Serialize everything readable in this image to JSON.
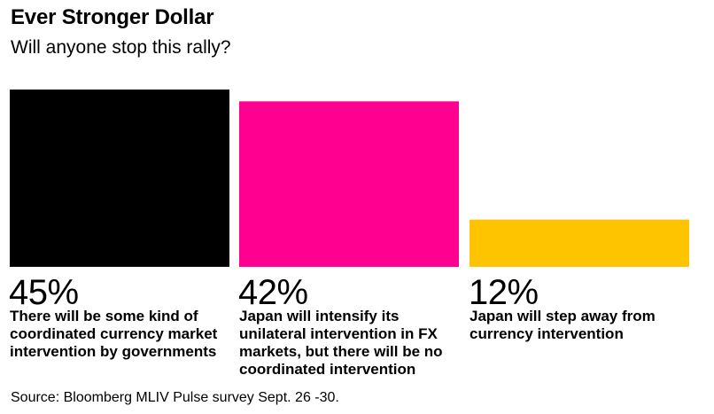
{
  "title": "Ever Stronger Dollar",
  "subtitle": "Will anyone stop this rally?",
  "source": "Source: Bloomberg MLIV Pulse survey Sept. 26 -30.",
  "chart_data": {
    "type": "bar",
    "title": "Ever Stronger Dollar",
    "subtitle": "Will anyone stop this rally?",
    "categories": [
      "There will be some kind of coordinated currency market intervention by governments",
      "Japan will intensify its unilateral intervention in FX markets, but there will be no coordinated intervention",
      "Japan will step away from currency intervention"
    ],
    "values": [
      45,
      42,
      12
    ],
    "value_labels": [
      "45%",
      "42%",
      "12%"
    ],
    "colors": [
      "#000000",
      "#ff0090",
      "#ffc400"
    ],
    "unit": "%",
    "ylim": [
      0,
      45
    ],
    "grid": false,
    "legend": "none",
    "source": "Source: Bloomberg MLIV Pulse survey Sept. 26 -30."
  }
}
